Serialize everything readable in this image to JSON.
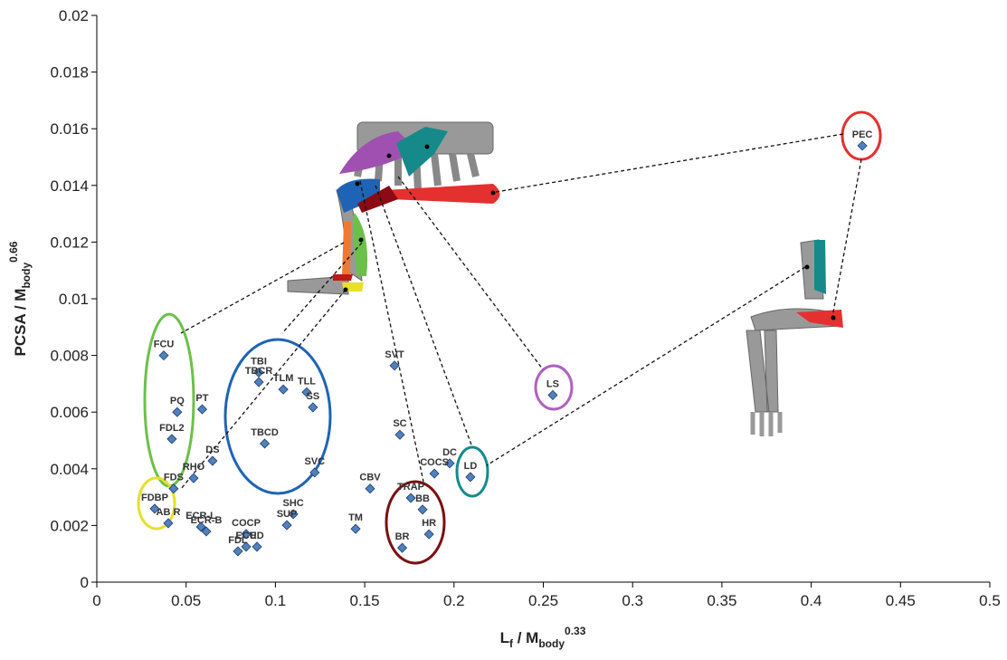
{
  "chart_data": {
    "type": "scatter",
    "x_label": {
      "text": "L",
      "sub": "f",
      "rest": " / M",
      "sub2": "body",
      "sup": "0.33"
    },
    "y_label": {
      "text": "PCSA / M",
      "sub": "body",
      "sup": "0.66"
    },
    "xlim": [
      0,
      0.5
    ],
    "xticks": [
      0,
      0.05,
      0.1,
      0.15,
      0.2,
      0.25,
      0.3,
      0.35,
      0.4,
      0.45,
      0.5
    ],
    "ylim": [
      0,
      0.02
    ],
    "yticks": [
      0,
      0.002,
      0.004,
      0.006,
      0.008,
      0.01,
      0.012,
      0.014,
      0.016,
      0.018,
      0.02
    ],
    "color": "#4f81bd",
    "labels": [
      "PEC",
      "FCU",
      "PQ",
      "FDL2",
      "PT",
      "TBI",
      "TBCR",
      "TLM",
      "TLL",
      "SS",
      "TBCD",
      "SVT",
      "SC",
      "LS",
      "DS",
      "RHO",
      "FDS",
      "SVC",
      "CBV",
      "DC",
      "COCS",
      "TRAP",
      "BB",
      "HR",
      "BR",
      "LD",
      "FDBP",
      "AB R",
      "ECR-L",
      "ECR-B",
      "COCP",
      "ECU",
      "FDL",
      "ED",
      "SHC",
      "SUP",
      "TM"
    ],
    "x": [
      0.4286,
      0.0375,
      0.045,
      0.042,
      0.059,
      0.0907,
      0.0907,
      0.1044,
      0.1175,
      0.121,
      0.094,
      0.1667,
      0.1697,
      0.2553,
      0.0648,
      0.0542,
      0.043,
      0.122,
      0.153,
      0.1976,
      0.189,
      0.1758,
      0.1824,
      0.186,
      0.171,
      0.2092,
      0.0324,
      0.04,
      0.0583,
      0.0613,
      0.0836,
      0.0836,
      0.079,
      0.0897,
      0.11,
      0.1064,
      0.1449
    ],
    "values": [
      0.0154,
      0.008,
      0.006,
      0.00505,
      0.0061,
      0.0074,
      0.00706,
      0.0068,
      0.0067,
      0.00617,
      0.00489,
      0.00764,
      0.0052,
      0.0066,
      0.00428,
      0.00367,
      0.0033,
      0.00387,
      0.0033,
      0.00419,
      0.00383,
      0.00297,
      0.00256,
      0.00169,
      0.00121,
      0.00371,
      0.00259,
      0.00208,
      0.00195,
      0.00179,
      0.0017,
      0.00125,
      0.00109,
      0.00125,
      0.0024,
      0.00201,
      0.00188
    ]
  }
}
